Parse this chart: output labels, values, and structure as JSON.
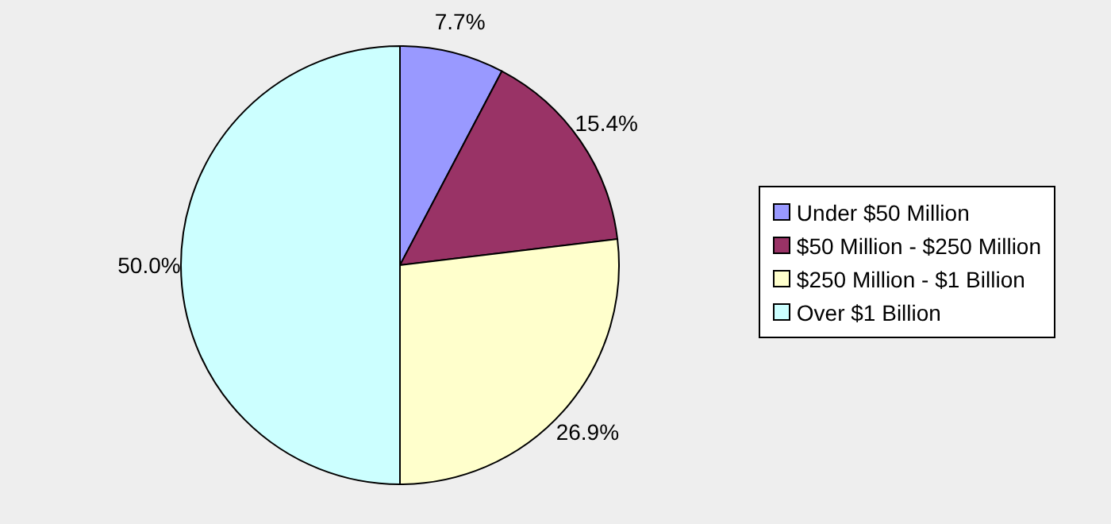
{
  "chart_data": {
    "type": "pie",
    "categories": [
      "Under $50 Million",
      "$50 Million - $250 Million",
      "$250 Million - $1 Billion",
      "Over $1 Billion"
    ],
    "values": [
      7.7,
      15.4,
      26.9,
      50.0
    ],
    "colors": [
      "#9999ff",
      "#993366",
      "#ffffcc",
      "#ccffff"
    ],
    "value_labels": [
      "7.7%",
      "15.4%",
      "26.9%",
      "50.0%"
    ],
    "legend": "right"
  }
}
